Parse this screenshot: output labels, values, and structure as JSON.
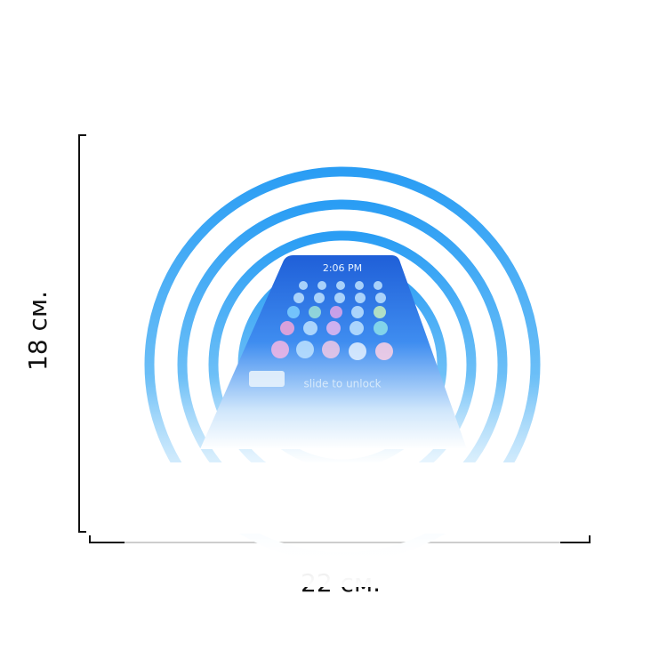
{
  "dimensions": {
    "height_label": "18 см.",
    "width_label": "22 см."
  },
  "phone": {
    "time": "2:06 PM",
    "unlock_text": "slide to unlock"
  }
}
